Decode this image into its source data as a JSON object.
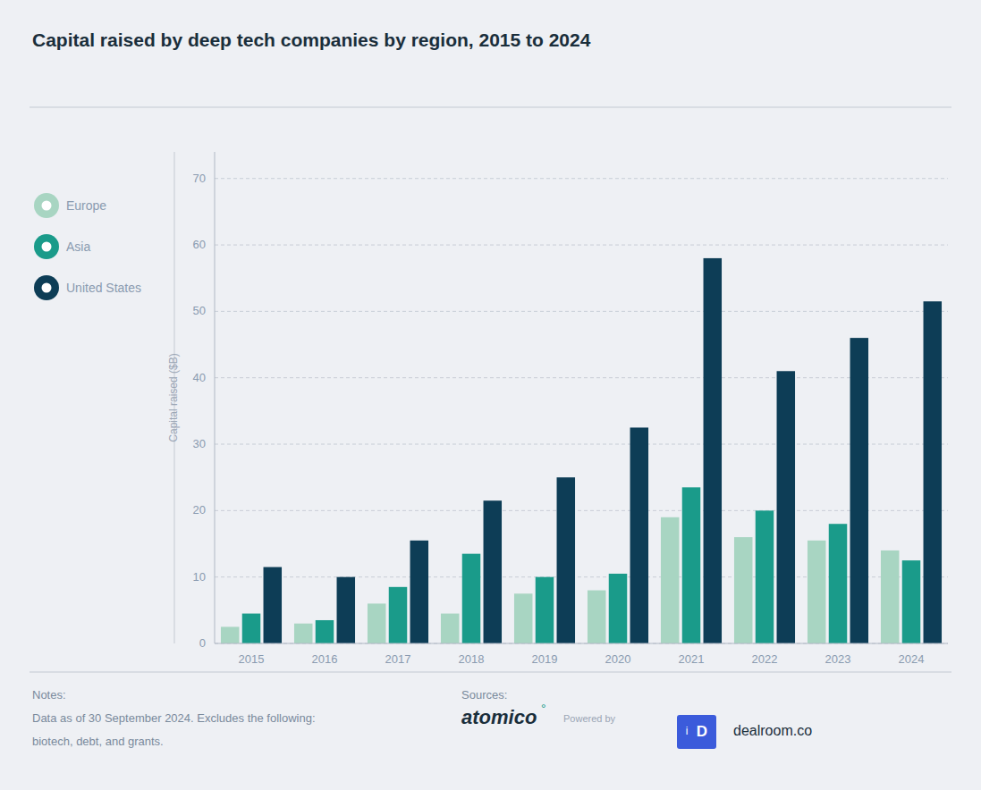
{
  "chart_data": {
    "type": "bar",
    "title": "Capital raised by deep tech companies by region, 2015 to 2024",
    "ylabel": "Capital raised ($B)",
    "categories": [
      "2015",
      "2016",
      "2017",
      "2018",
      "2019",
      "2020",
      "2021",
      "2022",
      "2023",
      "2024"
    ],
    "series": [
      {
        "name": "Europe",
        "color": "#a8d5c2",
        "values": [
          2.5,
          3.0,
          6.0,
          4.5,
          7.5,
          8.0,
          19.0,
          16.0,
          15.5,
          14.0
        ]
      },
      {
        "name": "Asia",
        "color": "#1a9b8a",
        "values": [
          4.5,
          3.5,
          8.5,
          13.5,
          10.0,
          10.5,
          23.5,
          20.0,
          18.0,
          12.5
        ]
      },
      {
        "name": "United States",
        "color": "#0d3d56",
        "values": [
          11.5,
          10.0,
          15.5,
          21.5,
          25.0,
          32.5,
          58.0,
          41.0,
          46.0,
          51.5
        ]
      }
    ],
    "ylim": [
      0,
      74
    ],
    "yticks": [
      0,
      10,
      20,
      30,
      40,
      50,
      60,
      70
    ],
    "grid": true,
    "legend": "left",
    "annotations": [
      "Notes:",
      "Data as of 30 September 2024. Excludes the following:",
      "biotech, debt, and grants.",
      "Sources:",
      "atomico",
      "°",
      "Powered by",
      "i",
      "D",
      "dealroom.co"
    ]
  }
}
